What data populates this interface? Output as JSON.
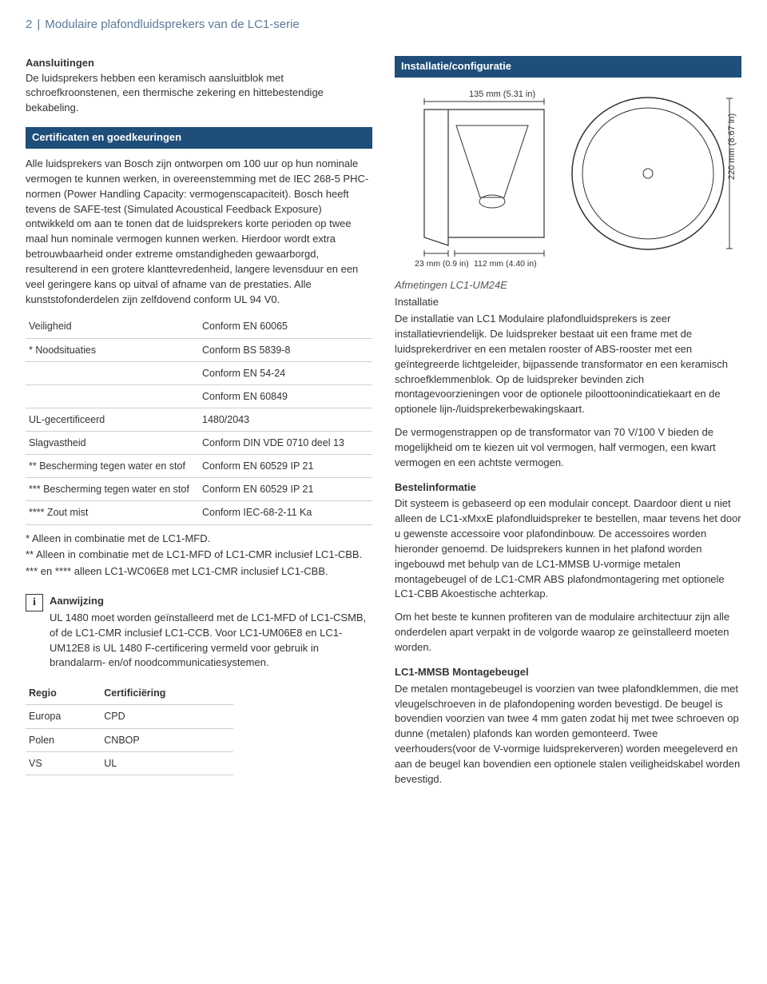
{
  "header": {
    "page_num": "2",
    "separator": "|",
    "title": "Modulaire plafondluidsprekers van de LC1-serie"
  },
  "left": {
    "aansluit_title": "Aansluitingen",
    "aansluit_body": "De luidsprekers hebben een keramisch aansluitblok met schroefkroonstenen, een thermische zekering en hittebestendige bekabeling.",
    "cert_bar": "Certificaten en goedkeuringen",
    "cert_body": "Alle luidsprekers van Bosch zijn ontworpen om 100 uur op hun nominale vermogen te kunnen werken, in overeenstemming met de IEC 268-5 PHC-normen (Power Handling Capacity: vermogenscapaciteit). Bosch heeft tevens de SAFE-test (Simulated Acoustical Feedback Exposure) ontwikkeld om aan te tonen dat de luidsprekers korte perioden op twee maal hun nominale vermogen kunnen werken. Hierdoor wordt extra betrouwbaarheid onder extreme omstandigheden gewaarborgd, resulterend in een grotere klanttevredenheid, langere levensduur en een veel geringere kans op uitval of afname van de prestaties. Alle kunststofonderdelen zijn zelfdovend conform UL 94 V0.",
    "spec_rows": [
      [
        "Veiligheid",
        "Conform EN 60065"
      ],
      [
        "* Noodsituaties",
        "Conform BS 5839-8"
      ],
      [
        "",
        "Conform EN 54-24"
      ],
      [
        "",
        "Conform EN 60849"
      ],
      [
        "UL-gecertificeerd",
        "1480/2043"
      ],
      [
        "Slagvastheid",
        "Conform DIN VDE 0710 deel 13"
      ],
      [
        "** Bescherming tegen water en stof",
        "Conform EN 60529 IP 21"
      ],
      [
        "*** Bescherming tegen water en stof",
        "Conform EN 60529 IP 21"
      ],
      [
        "**** Zout mist",
        "Conform IEC-68-2-11 Ka"
      ]
    ],
    "note1": "* Alleen in combinatie met de LC1-MFD.",
    "note2": "** Alleen in combinatie met de LC1-MFD of LC1-CMR inclusief LC1-CBB.",
    "note3": "*** en **** alleen LC1-WC06E8 met LC1-CMR inclusief LC1-CBB.",
    "info_heading": "Aanwijzing",
    "info_body": "UL 1480 moet worden geïnstalleerd met de LC1-MFD of LC1-CSMB, of de LC1-CMR inclusief LC1-CCB. Voor LC1-UM06E8 en LC1-UM12E8 is UL 1480 F-certificering vermeld voor gebruik in brandalarm- en/of noodcommunicatiesystemen.",
    "region_table": {
      "h1": "Regio",
      "h2": "Certificiëring",
      "rows": [
        [
          "Europa",
          "CPD"
        ],
        [
          "Polen",
          "CNBOP"
        ],
        [
          "VS",
          "UL"
        ]
      ]
    }
  },
  "right": {
    "install_bar": "Installatie/configuratie",
    "diagram": {
      "top_label": "135 mm (5.31 in)",
      "bottom_left": "23 mm (0.9 in)",
      "bottom_right": "112 mm (4.40 in)",
      "side_label": "220 mm (8.67 in)",
      "colors": {
        "line": "#333333",
        "bg": "#ffffff"
      }
    },
    "diagram_caption": "Afmetingen LC1-UM24E",
    "install_heading": "Installatie",
    "install_body": "De installatie van LC1 Modulaire plafondluidsprekers is zeer installatievriendelijk. De luidspreker bestaat uit een frame met de luidsprekerdriver en een metalen rooster of ABS-rooster met een geïntegreerde lichtgeleider, bijpassende transformator en een keramisch schroefklemmenblok. Op de luidspreker bevinden zich montagevoorzieningen voor de optionele piloottoonindicatiekaart en de optionele lijn-/luidsprekerbewakingskaart.",
    "install_body2": "De vermogenstrappen op de transformator van 70 V/100 V bieden de mogelijkheid om te kiezen uit vol vermogen, half vermogen, een kwart vermogen en een achtste vermogen.",
    "bestel_heading": "Bestelinformatie",
    "bestel_body": "Dit systeem is gebaseerd op een modulair concept. Daardoor dient u niet alleen de LC1-xMxxE plafondluidspreker te bestellen, maar tevens het door u gewenste accessoire voor plafondinbouw. De accessoires worden hieronder genoemd. De luidsprekers kunnen in het plafond worden ingebouwd met behulp van de LC1-MMSB U-vormige metalen montagebeugel of de LC1-CMR ABS plafondmontagering met optionele LC1-CBB Akoestische achterkap.",
    "bestel_body2": "Om het beste te kunnen profiteren van de modulaire architectuur zijn alle onderdelen apart verpakt in de volgorde waarop ze geïnstalleerd moeten worden.",
    "mmsb_heading": "LC1-MMSB Montagebeugel",
    "mmsb_body": "De metalen montagebeugel is voorzien van twee plafondklemmen, die met vleugelschroeven in de plafondopening worden bevestigd. De beugel is bovendien voorzien van twee 4 mm gaten zodat hij met twee schroeven op dunne (metalen) plafonds kan worden gemonteerd. Twee veerhouders(voor de V-vormige luidsprekerveren) worden meegeleverd en aan de beugel kan bovendien een optionele stalen veiligheidskabel worden bevestigd."
  }
}
